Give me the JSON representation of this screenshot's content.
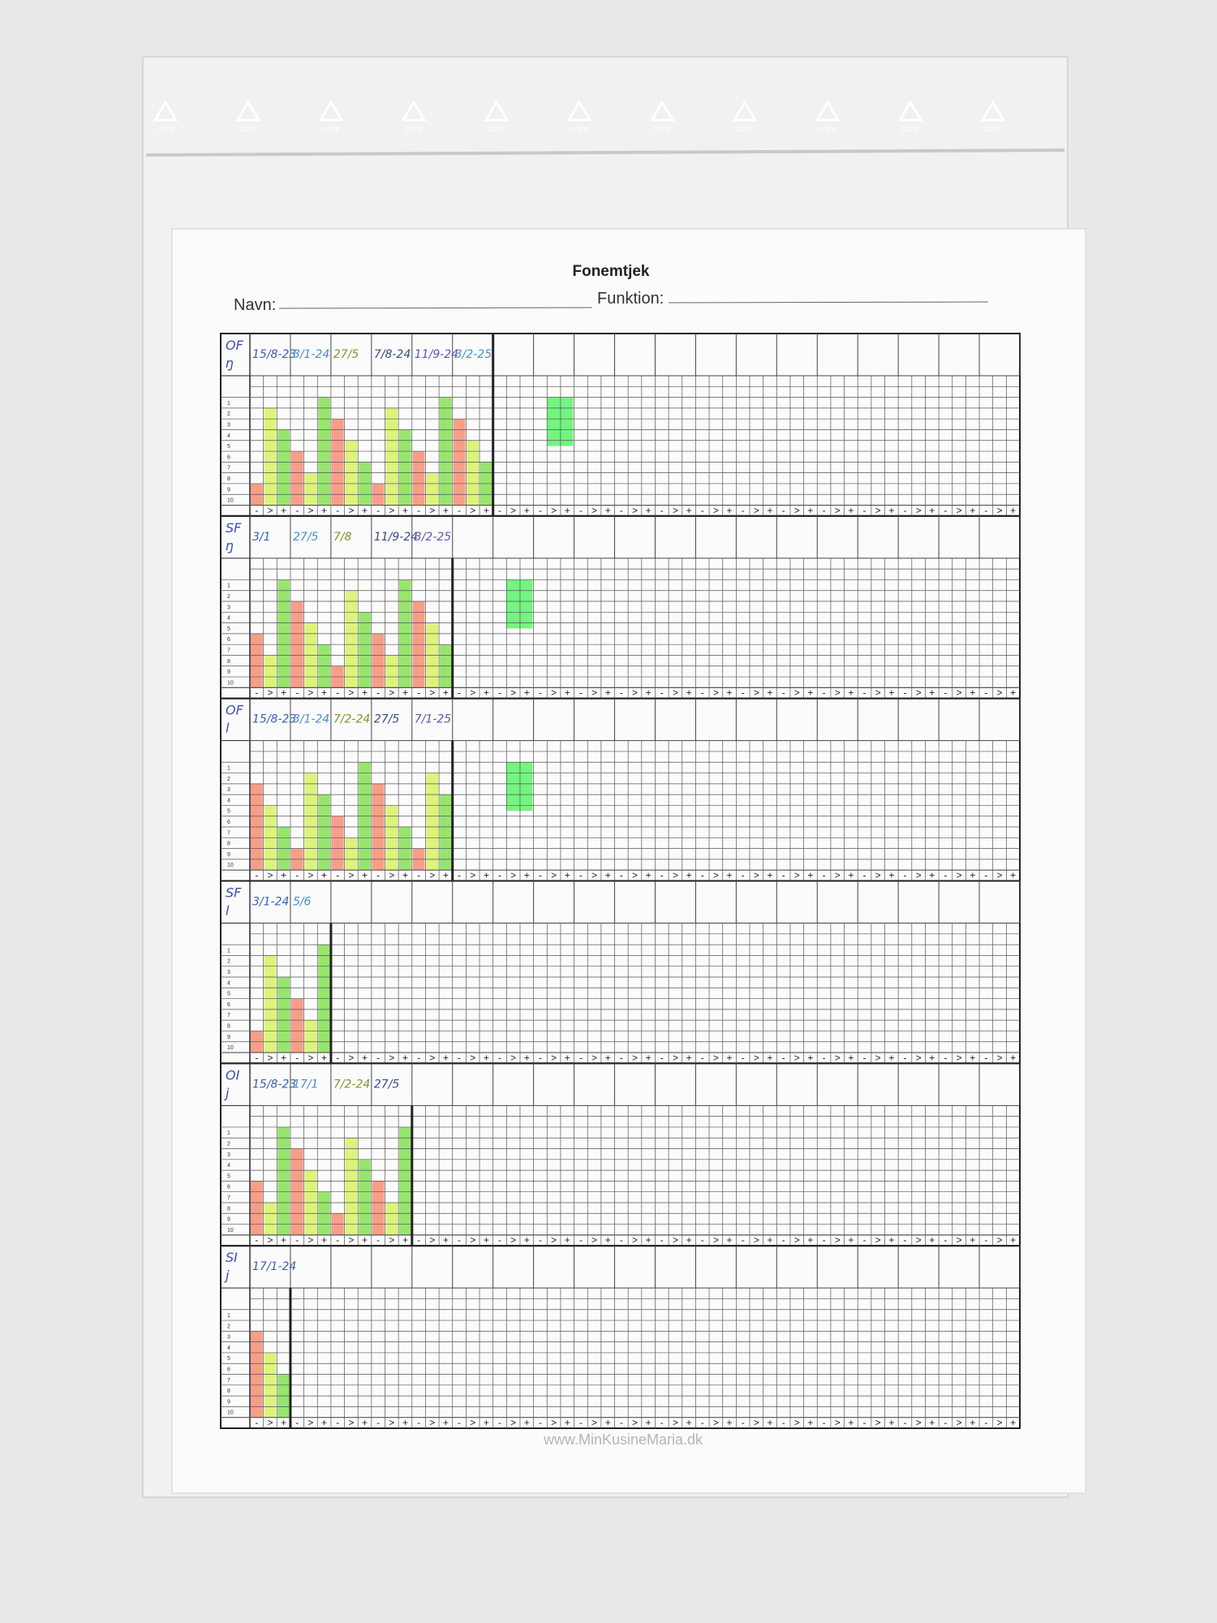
{
  "bag": {
    "mark": "LDPE"
  },
  "header": {
    "title": "Fonemtjek",
    "name_label": "Navn:",
    "function_label": "Funktion:"
  },
  "scale": {
    "rows": [
      1,
      2,
      3,
      4,
      5,
      6,
      7,
      8,
      9,
      10
    ],
    "symbols": [
      "-",
      ">",
      "+"
    ]
  },
  "blocks": [
    {
      "label": [
        "OF",
        "ŋ"
      ],
      "dates": [
        "15/8-23",
        "3/1-24",
        "27/5",
        "7/8-24",
        "11/9-24",
        "3/2-25"
      ]
    },
    {
      "label": [
        "SF",
        "ŋ"
      ],
      "dates": [
        "3/1",
        "27/5",
        "7/8",
        "11/9-24",
        "3/2-25"
      ]
    },
    {
      "label": [
        "OF",
        "l"
      ],
      "dates": [
        "15/8-23",
        "3/1-24",
        "7/2-24",
        "27/5",
        "7/1-25"
      ]
    },
    {
      "label": [
        "SF",
        "l"
      ],
      "dates": [
        "3/1-24",
        "5/6"
      ]
    },
    {
      "label": [
        "OI",
        "j"
      ],
      "dates": [
        "15/8-23",
        "17/1",
        "7/2-24",
        "27/5"
      ]
    },
    {
      "label": [
        "SI",
        "j"
      ],
      "dates": [
        "17/1-24"
      ]
    }
  ],
  "footer": "www.MinKusineMaria.dk"
}
